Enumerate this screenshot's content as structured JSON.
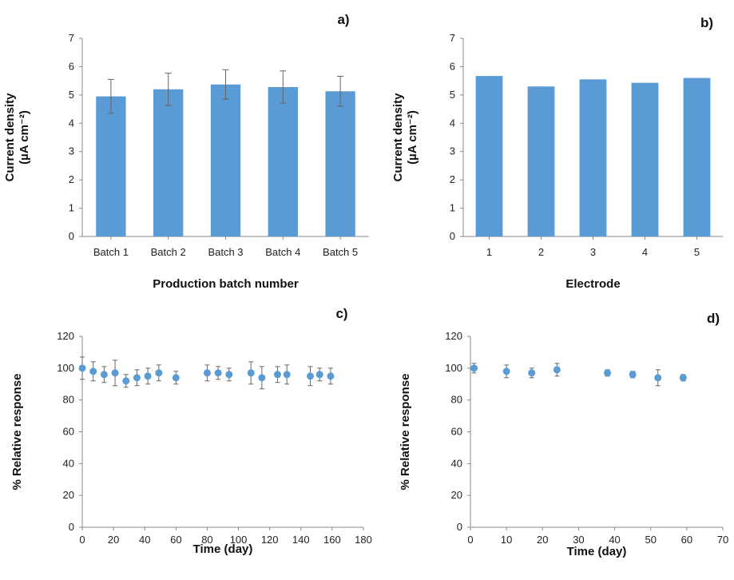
{
  "chart_data": [
    {
      "panel_label": "a)",
      "type": "bar",
      "xlabel": "Production batch number",
      "ylabel": [
        "Current density",
        "(µA cm⁻²)"
      ],
      "ylim": [
        0,
        7
      ],
      "yticks": [
        "0",
        "1",
        "2",
        "3",
        "4",
        "5",
        "6",
        "7"
      ],
      "categories": [
        "Batch 1",
        "Batch 2",
        "Batch 3",
        "Batch 4",
        "Batch 5"
      ],
      "values": [
        4.95,
        5.2,
        5.37,
        5.28,
        5.13
      ],
      "errors": [
        0.6,
        0.57,
        0.52,
        0.57,
        0.53
      ],
      "bar_color": "#5b9bd5",
      "grid": false
    },
    {
      "panel_label": "b)",
      "type": "bar",
      "xlabel": "Electrode",
      "ylabel": [
        "Current density",
        "(µA cm⁻²)"
      ],
      "ylim": [
        0,
        7
      ],
      "yticks": [
        "0",
        "1",
        "2",
        "3",
        "4",
        "5",
        "6",
        "7"
      ],
      "categories": [
        "1",
        "2",
        "3",
        "4",
        "5"
      ],
      "values": [
        5.67,
        5.3,
        5.55,
        5.43,
        5.6
      ],
      "errors": [],
      "bar_color": "#5b9bd5",
      "grid": false
    },
    {
      "panel_label": "c)",
      "type": "scatter",
      "xlabel": "Time (day)",
      "ylabel": [
        "% Relative response"
      ],
      "xlim": [
        0,
        180
      ],
      "xticks": [
        "0",
        "20",
        "40",
        "60",
        "80",
        "100",
        "120",
        "140",
        "160",
        "180"
      ],
      "ylim": [
        0,
        120
      ],
      "yticks": [
        "0",
        "20",
        "40",
        "60",
        "80",
        "100",
        "120"
      ],
      "x": [
        0,
        7,
        14,
        21,
        28,
        35,
        42,
        49,
        60,
        80,
        87,
        94,
        108,
        115,
        125,
        131,
        146,
        152,
        159
      ],
      "y": [
        100,
        98,
        96,
        97,
        92,
        94,
        95,
        97,
        94,
        97,
        97,
        96,
        97,
        94,
        96,
        96,
        95,
        96,
        95
      ],
      "errors": [
        7,
        6,
        5,
        8,
        4,
        5,
        5,
        5,
        4,
        5,
        4,
        4,
        7,
        7,
        5,
        6,
        6,
        4,
        5
      ],
      "marker_color": "#5b9bd5",
      "grid": false
    },
    {
      "panel_label": "d)",
      "type": "scatter",
      "xlabel": "Time (day)",
      "ylabel": [
        "% Relative response"
      ],
      "xlim": [
        0,
        70
      ],
      "xticks": [
        "0",
        "10",
        "20",
        "30",
        "40",
        "50",
        "60",
        "70"
      ],
      "ylim": [
        0,
        120
      ],
      "yticks": [
        "0",
        "20",
        "40",
        "60",
        "80",
        "100",
        "120"
      ],
      "x": [
        1,
        10,
        17,
        24,
        38,
        45,
        52,
        59
      ],
      "y": [
        100,
        98,
        97,
        99,
        97,
        96,
        94,
        94
      ],
      "errors": [
        3,
        4,
        3,
        4,
        2,
        2,
        5,
        2
      ],
      "marker_color": "#5b9bd5",
      "grid": false
    }
  ]
}
